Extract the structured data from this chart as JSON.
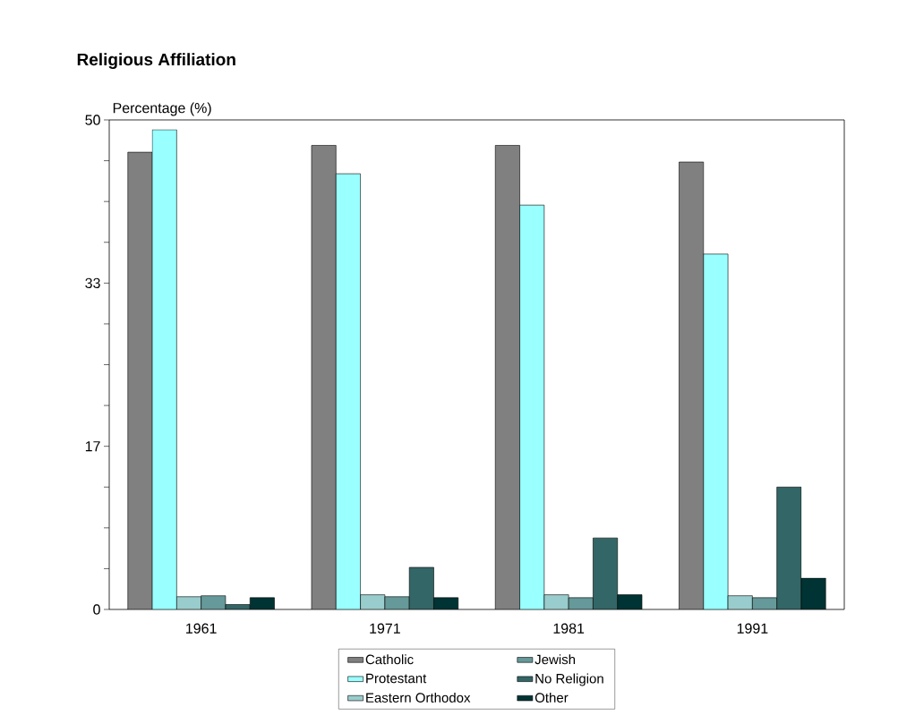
{
  "chart_data": {
    "type": "bar",
    "title": "Religious Affiliation",
    "ylabel": "Percentage (%)",
    "categories": [
      "1961",
      "1971",
      "1981",
      "1991"
    ],
    "series": [
      {
        "name": "Catholic",
        "color": "#808080",
        "values": [
          46.7,
          47.4,
          47.4,
          45.7
        ]
      },
      {
        "name": "Protestant",
        "color": "#99ffff",
        "values": [
          49.0,
          44.5,
          41.3,
          36.3
        ]
      },
      {
        "name": "Eastern Orthodox",
        "color": "#99cccc",
        "values": [
          1.3,
          1.5,
          1.5,
          1.4
        ]
      },
      {
        "name": "Jewish",
        "color": "#669999",
        "values": [
          1.4,
          1.3,
          1.2,
          1.2
        ]
      },
      {
        "name": "No Religion",
        "color": "#336666",
        "values": [
          0.5,
          4.3,
          7.3,
          12.5
        ]
      },
      {
        "name": "Other",
        "color": "#003333",
        "values": [
          1.2,
          1.2,
          1.5,
          3.2
        ]
      }
    ],
    "ylim": [
      0,
      50
    ],
    "yticks": [
      0,
      {
        "value": 4.1667,
        "label": null
      },
      {
        "value": 8.3333,
        "label": null
      },
      {
        "value": 12.5,
        "label": null
      },
      {
        "value": 16.6667,
        "label": "17"
      },
      {
        "value": 20.8333,
        "label": null
      },
      {
        "value": 25,
        "label": null
      },
      {
        "value": 29.1667,
        "label": null
      },
      {
        "value": 33.3333,
        "label": "33"
      },
      {
        "value": 37.5,
        "label": null
      },
      {
        "value": 41.6667,
        "label": null
      },
      {
        "value": 45.8333,
        "label": null
      },
      50
    ],
    "grid": false,
    "legend": "bottom"
  }
}
